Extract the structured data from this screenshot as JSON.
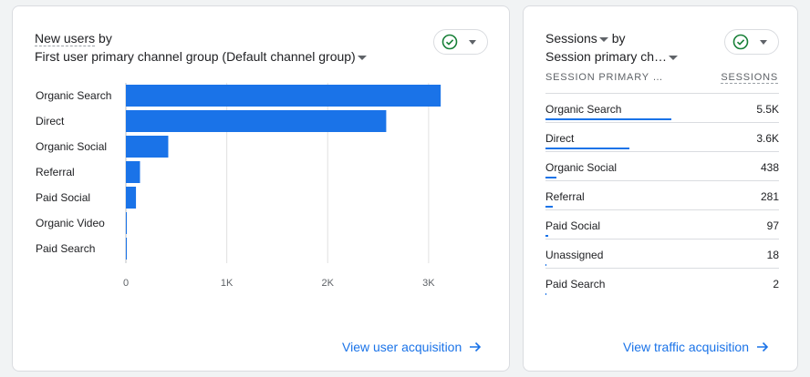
{
  "left_card": {
    "title_metric": "New users",
    "title_by": " by",
    "title_dimension": "First user primary channel group (Default channel group)",
    "link": "View user acquisition",
    "chart_data": {
      "type": "bar",
      "orientation": "horizontal",
      "categories": [
        "Organic Search",
        "Direct",
        "Organic Social",
        "Referral",
        "Paid Social",
        "Organic Video",
        "Paid Search"
      ],
      "values": [
        3120,
        2580,
        420,
        140,
        100,
        8,
        4
      ],
      "xlim": [
        0,
        3200
      ],
      "xticks": [
        "0",
        "1K",
        "2K",
        "3K"
      ],
      "xtick_values": [
        0,
        1000,
        2000,
        3000
      ],
      "grid": true,
      "color": "#1a73e8"
    }
  },
  "right_card": {
    "title_metric": "Sessions",
    "title_by": " by",
    "title_dimension": "Session primary ch…",
    "col_dimension": "SESSION PRIMARY …",
    "col_metric": "SESSIONS",
    "link": "View traffic acquisition",
    "rows": [
      {
        "name": "Organic Search",
        "value": "5.5K",
        "share": 0.54
      },
      {
        "name": "Direct",
        "value": "3.6K",
        "share": 0.36
      },
      {
        "name": "Organic Social",
        "value": "438",
        "share": 0.045
      },
      {
        "name": "Referral",
        "value": "281",
        "share": 0.03
      },
      {
        "name": "Paid Social",
        "value": "97",
        "share": 0.01
      },
      {
        "name": "Unassigned",
        "value": "18",
        "share": 0.003
      },
      {
        "name": "Paid Search",
        "value": "2",
        "share": 0.0005
      }
    ]
  },
  "colors": {
    "accent": "#1a73e8",
    "check_green": "#188038"
  }
}
